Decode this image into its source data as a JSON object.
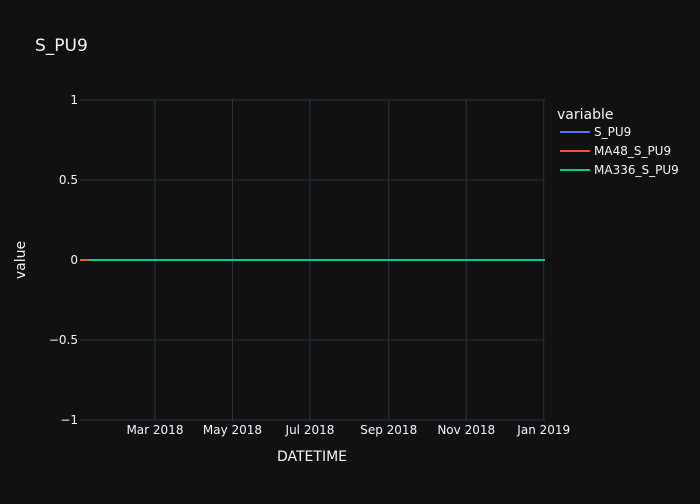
{
  "chart_data": {
    "type": "line",
    "title": "S_PU9",
    "xlabel": "DATETIME",
    "ylabel": "value",
    "ylim": [
      -1,
      1
    ],
    "xlim": [
      "2018-01-01",
      "2019-01-02"
    ],
    "y_ticks": [
      1,
      0.5,
      0,
      -0.5,
      -1
    ],
    "y_tick_labels": [
      "1",
      "0.5",
      "0",
      "−0.5",
      "−1"
    ],
    "x_ticks": [
      "2018-03-01",
      "2018-05-01",
      "2018-07-01",
      "2018-09-01",
      "2018-11-01",
      "2019-01-01"
    ],
    "x_tick_labels": [
      "Mar 2018",
      "May 2018",
      "Jul 2018",
      "Sep 2018",
      "Nov 2018",
      "Jan 2019"
    ],
    "grid": true,
    "legend": {
      "title": "variable",
      "placement": "top-right"
    },
    "series": [
      {
        "name": "S_PU9",
        "color": "#636efa",
        "x": [
          "2018-01-01",
          "2019-01-02"
        ],
        "y": [
          0,
          0
        ]
      },
      {
        "name": "MA48_S_PU9",
        "color": "#ef553b",
        "x": [
          "2018-01-01",
          "2018-01-08"
        ],
        "y": [
          0,
          0
        ]
      },
      {
        "name": "MA336_S_PU9",
        "color": "#00cc96",
        "x": [
          "2018-01-08",
          "2019-01-02"
        ],
        "y": [
          0,
          0
        ]
      }
    ]
  }
}
